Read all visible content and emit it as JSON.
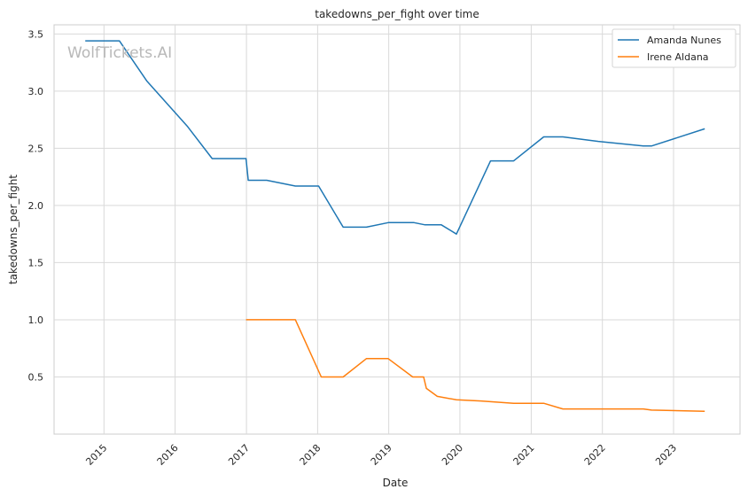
{
  "chart_data": {
    "type": "line",
    "title": "takedowns_per_fight over time",
    "xlabel": "Date",
    "ylabel": "takedowns_per_fight",
    "watermark": "WolfTickets.AI",
    "x_ticks": [
      "2015",
      "2016",
      "2017",
      "2018",
      "2019",
      "2020",
      "2021",
      "2022",
      "2023"
    ],
    "y_ticks": [
      "0.5",
      "1.0",
      "1.5",
      "2.0",
      "2.5",
      "3.0",
      "3.5"
    ],
    "xlim": [
      "2014-04-20",
      "2023-12-08"
    ],
    "ylim": [
      0.0,
      3.58
    ],
    "grid": true,
    "legend_position": "top-right",
    "colors": {
      "Amanda Nunes": "#1f77b4",
      "Irene Aldana": "#ff7f0e"
    },
    "series": [
      {
        "name": "Amanda Nunes",
        "x": [
          "2014-09-27",
          "2015-03-21",
          "2015-08-08",
          "2016-03-05",
          "2016-07-09",
          "2016-12-30",
          "2017-01-10",
          "2017-04-15",
          "2017-09-09",
          "2018-01-06",
          "2018-05-12",
          "2018-09-08",
          "2018-12-29",
          "2019-05-11",
          "2019-07-06",
          "2019-09-28",
          "2019-12-14",
          "2020-06-06",
          "2020-10-03",
          "2021-03-06",
          "2021-06-12",
          "2021-12-11",
          "2022-07-30",
          "2022-09-10",
          "2023-06-10"
        ],
        "y": [
          3.44,
          3.44,
          3.09,
          2.69,
          2.41,
          2.41,
          2.22,
          2.22,
          2.17,
          2.17,
          1.81,
          1.81,
          1.85,
          1.85,
          1.83,
          1.83,
          1.75,
          2.39,
          2.39,
          2.6,
          2.6,
          2.56,
          2.52,
          2.52,
          2.67
        ]
      },
      {
        "name": "Irene Aldana",
        "x": [
          "2016-12-30",
          "2017-09-09",
          "2018-01-20",
          "2018-05-12",
          "2018-09-08",
          "2018-12-29",
          "2019-05-04",
          "2019-06-29",
          "2019-07-13",
          "2019-09-07",
          "2019-12-14",
          "2020-04-18",
          "2020-10-03",
          "2021-03-06",
          "2021-06-12",
          "2022-07-30",
          "2022-09-10",
          "2023-06-10"
        ],
        "y": [
          1.0,
          1.0,
          0.5,
          0.5,
          0.66,
          0.66,
          0.5,
          0.5,
          0.4,
          0.33,
          0.3,
          0.29,
          0.27,
          0.27,
          0.22,
          0.22,
          0.21,
          0.2
        ]
      }
    ]
  }
}
